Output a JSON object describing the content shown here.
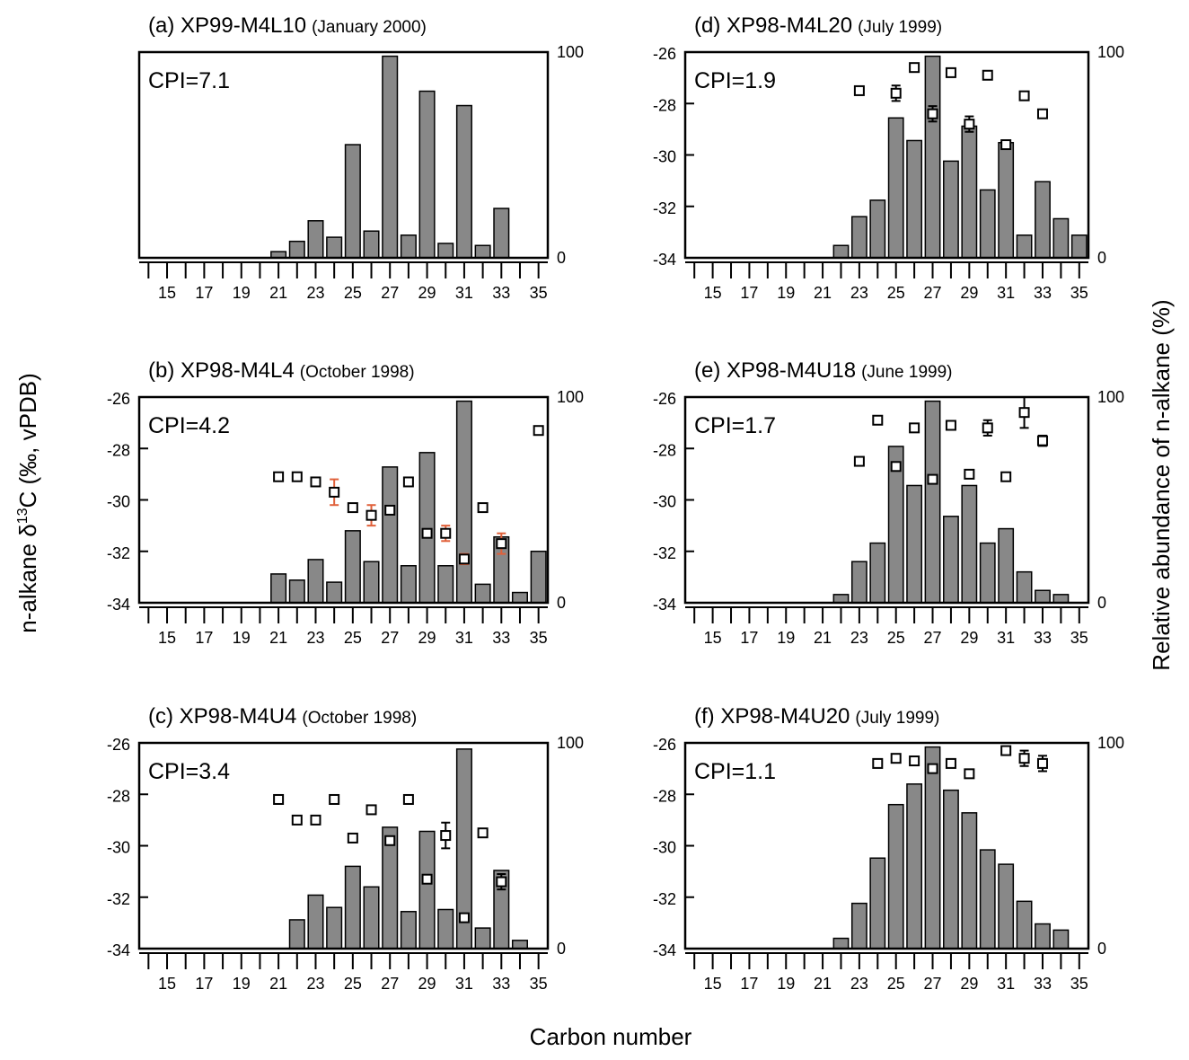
{
  "figure": {
    "xlabel": "Carbon number",
    "ylabel": [
      "n-alkane δ",
      "13",
      "C (‰, vPDB)"
    ],
    "y2label": "Relative abundance of n-alkane (%)"
  },
  "chart_data": [
    {
      "type": "bar",
      "title": "(a) XP99-M4L10",
      "subtitle": "(January 2000)",
      "annotation": "CPI=7.1",
      "xlim": [
        13.5,
        35.5
      ],
      "xticks": [
        15,
        17,
        19,
        21,
        23,
        25,
        27,
        29,
        31,
        33,
        35
      ],
      "xminorticks": [
        14,
        16,
        18,
        20,
        22,
        24,
        26,
        28,
        30,
        32,
        34
      ],
      "y2lim": [
        0,
        100
      ],
      "y2ticks": [
        0,
        100
      ],
      "bar_color": "#888888",
      "bars": {
        "x": [
          21,
          22,
          23,
          24,
          25,
          26,
          27,
          28,
          29,
          30,
          31,
          32,
          33
        ],
        "values": [
          3,
          8,
          18,
          10,
          55,
          13,
          98,
          11,
          81,
          7,
          74,
          6,
          24
        ]
      }
    },
    {
      "type": "bar",
      "title": "(b) XP98-M4L4",
      "subtitle": "(October 1998)",
      "annotation": "CPI=4.2",
      "xlim": [
        13.5,
        35.5
      ],
      "xticks": [
        15,
        17,
        19,
        21,
        23,
        25,
        27,
        29,
        31,
        33,
        35
      ],
      "xminorticks": [
        14,
        16,
        18,
        20,
        22,
        24,
        26,
        28,
        30,
        32,
        34
      ],
      "ylim": [
        -34,
        -26
      ],
      "yticks": [
        -34,
        -32,
        -30,
        -28,
        -26
      ],
      "y2lim": [
        0,
        100
      ],
      "y2ticks": [
        0,
        100
      ],
      "bar_color": "#888888",
      "error_color": "#e0603a",
      "bars": {
        "x": [
          21,
          22,
          23,
          24,
          25,
          26,
          27,
          28,
          29,
          30,
          31,
          32,
          33,
          34,
          35
        ],
        "values": [
          14,
          11,
          21,
          10,
          35,
          20,
          66,
          18,
          73,
          18,
          98,
          9,
          32,
          5,
          25
        ]
      },
      "points": {
        "x": [
          21,
          22,
          23,
          24,
          25,
          26,
          27,
          28,
          29,
          30,
          31,
          32,
          33,
          35
        ],
        "values": [
          -29.1,
          -29.1,
          -29.3,
          -29.7,
          -30.3,
          -30.6,
          -30.4,
          -29.3,
          -31.3,
          -31.3,
          -32.3,
          -30.3,
          -31.7,
          -27.3
        ],
        "errors": [
          null,
          null,
          null,
          0.5,
          null,
          0.4,
          null,
          null,
          null,
          0.3,
          0.2,
          null,
          0.4,
          null
        ]
      }
    },
    {
      "type": "bar",
      "title": "(c) XP98-M4U4",
      "subtitle": "(October 1998)",
      "annotation": "CPI=3.4",
      "xlim": [
        13.5,
        35.5
      ],
      "xticks": [
        15,
        17,
        19,
        21,
        23,
        25,
        27,
        29,
        31,
        33,
        35
      ],
      "xminorticks": [
        14,
        16,
        18,
        20,
        22,
        24,
        26,
        28,
        30,
        32,
        34
      ],
      "ylim": [
        -34,
        -26
      ],
      "yticks": [
        -34,
        -32,
        -30,
        -28,
        -26
      ],
      "y2lim": [
        0,
        100
      ],
      "y2ticks": [
        0,
        100
      ],
      "bar_color": "#888888",
      "error_color": "#000000",
      "bars": {
        "x": [
          22,
          23,
          24,
          25,
          26,
          27,
          28,
          29,
          30,
          31,
          32,
          33,
          34
        ],
        "values": [
          14,
          26,
          20,
          40,
          30,
          59,
          18,
          57,
          19,
          97,
          10,
          38,
          4
        ]
      },
      "points": {
        "x": [
          21,
          22,
          23,
          24,
          25,
          26,
          27,
          28,
          29,
          30,
          31,
          32,
          33
        ],
        "values": [
          -28.2,
          -29.0,
          -29.0,
          -28.2,
          -29.7,
          -28.6,
          -29.8,
          -28.2,
          -31.3,
          -29.6,
          -32.8,
          -29.5,
          -31.4
        ],
        "errors": [
          null,
          null,
          null,
          null,
          null,
          null,
          null,
          null,
          null,
          0.5,
          null,
          null,
          0.3
        ]
      }
    },
    {
      "type": "bar",
      "title": "(d) XP98-M4L20",
      "subtitle": "(July 1999)",
      "annotation": "CPI=1.9",
      "xlim": [
        13.5,
        35.5
      ],
      "xticks": [
        15,
        17,
        19,
        21,
        23,
        25,
        27,
        29,
        31,
        33,
        35
      ],
      "xminorticks": [
        14,
        16,
        18,
        20,
        22,
        24,
        26,
        28,
        30,
        32,
        34
      ],
      "ylim": [
        -34,
        -26
      ],
      "yticks": [
        -34,
        -32,
        -30,
        -28,
        -26
      ],
      "y2lim": [
        0,
        100
      ],
      "y2ticks": [
        0,
        100
      ],
      "bar_color": "#888888",
      "error_color": "#000000",
      "bars": {
        "x": [
          22,
          23,
          24,
          25,
          26,
          27,
          28,
          29,
          30,
          31,
          32,
          33,
          34,
          35
        ],
        "values": [
          6,
          20,
          28,
          68,
          57,
          98,
          47,
          64,
          33,
          56,
          11,
          37,
          19,
          11
        ]
      },
      "points": {
        "x": [
          23,
          25,
          26,
          27,
          28,
          29,
          30,
          31,
          32,
          33
        ],
        "values": [
          -27.5,
          -27.6,
          -26.6,
          -28.4,
          -26.8,
          -28.8,
          -26.9,
          -29.6,
          -27.7,
          -28.4
        ],
        "errors": [
          null,
          0.3,
          null,
          0.3,
          null,
          0.3,
          null,
          null,
          null,
          null
        ]
      }
    },
    {
      "type": "bar",
      "title": "(e) XP98-M4U18",
      "subtitle": "(June 1999)",
      "annotation": "CPI=1.7",
      "xlim": [
        13.5,
        35.5
      ],
      "xticks": [
        15,
        17,
        19,
        21,
        23,
        25,
        27,
        29,
        31,
        33,
        35
      ],
      "xminorticks": [
        14,
        16,
        18,
        20,
        22,
        24,
        26,
        28,
        30,
        32,
        34
      ],
      "ylim": [
        -34,
        -26
      ],
      "yticks": [
        -34,
        -32,
        -30,
        -28,
        -26
      ],
      "y2lim": [
        0,
        100
      ],
      "y2ticks": [
        0,
        100
      ],
      "bar_color": "#888888",
      "error_color": "#000000",
      "bars": {
        "x": [
          22,
          23,
          24,
          25,
          26,
          27,
          28,
          29,
          30,
          31,
          32,
          33,
          34
        ],
        "values": [
          4,
          20,
          29,
          76,
          57,
          98,
          42,
          57,
          29,
          36,
          15,
          6,
          4
        ]
      },
      "points": {
        "x": [
          23,
          24,
          25,
          26,
          27,
          28,
          29,
          30,
          31,
          32,
          33
        ],
        "values": [
          -28.5,
          -26.9,
          -28.7,
          -27.2,
          -29.2,
          -27.1,
          -29.0,
          -27.2,
          -29.1,
          -26.6,
          -27.7
        ],
        "errors": [
          null,
          null,
          null,
          null,
          null,
          null,
          null,
          0.3,
          null,
          0.6,
          0.2
        ]
      }
    },
    {
      "type": "bar",
      "title": "(f) XP98-M4U20",
      "subtitle": "(July 1999)",
      "annotation": "CPI=1.1",
      "xlim": [
        13.5,
        35.5
      ],
      "xticks": [
        15,
        17,
        19,
        21,
        23,
        25,
        27,
        29,
        31,
        33,
        35
      ],
      "xminorticks": [
        14,
        16,
        18,
        20,
        22,
        24,
        26,
        28,
        30,
        32,
        34
      ],
      "ylim": [
        -34,
        -26
      ],
      "yticks": [
        -34,
        -32,
        -30,
        -28,
        -26
      ],
      "y2lim": [
        0,
        100
      ],
      "y2ticks": [
        0,
        100
      ],
      "bar_color": "#888888",
      "error_color": "#000000",
      "bars": {
        "x": [
          22,
          23,
          24,
          25,
          26,
          27,
          28,
          29,
          30,
          31,
          32,
          33,
          34
        ],
        "values": [
          5,
          22,
          44,
          70,
          80,
          98,
          77,
          66,
          48,
          41,
          23,
          12,
          9
        ]
      },
      "points": {
        "x": [
          24,
          25,
          26,
          27,
          28,
          29,
          31,
          32,
          33
        ],
        "values": [
          -26.8,
          -26.6,
          -26.7,
          -27.0,
          -26.8,
          -27.2,
          -26.3,
          -26.6,
          -26.8
        ],
        "errors": [
          null,
          null,
          null,
          null,
          null,
          null,
          null,
          0.3,
          0.3
        ]
      }
    }
  ]
}
